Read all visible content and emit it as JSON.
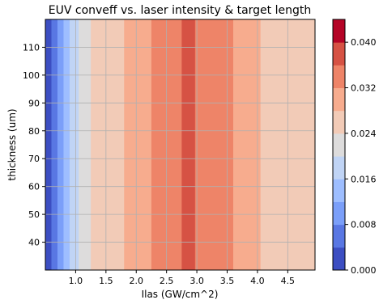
{
  "chart_data": {
    "type": "heatmap",
    "subtype": "filled-contour",
    "title": "EUV conveff vs. laser intensity & target length",
    "xlabel": "Ilas (GW/cm^2)",
    "ylabel": "thickness (um)",
    "xlim": [
      0.5,
      4.95
    ],
    "ylim": [
      30,
      120
    ],
    "x_ticks": [
      "1.0",
      "1.5",
      "2.0",
      "2.5",
      "3.0",
      "3.5",
      "4.0",
      "4.5"
    ],
    "x_tick_values": [
      1.0,
      1.5,
      2.0,
      2.5,
      3.0,
      3.5,
      4.0,
      4.5
    ],
    "y_ticks": [
      "40",
      "50",
      "60",
      "70",
      "80",
      "90",
      "100",
      "110"
    ],
    "y_tick_values": [
      40,
      50,
      60,
      70,
      80,
      90,
      100,
      110
    ],
    "grid": true,
    "colormap": "coolwarm",
    "colorbar": {
      "levels": [
        0.0,
        0.004,
        0.008,
        0.012,
        0.016,
        0.02,
        0.024,
        0.028,
        0.032,
        0.036,
        0.04,
        0.044
      ],
      "tick_labels": [
        "0.000",
        "0.008",
        "0.016",
        "0.024",
        "0.032",
        "0.040"
      ],
      "tick_values": [
        0.0,
        0.008,
        0.016,
        0.024,
        0.032,
        0.04
      ],
      "colors": [
        "#3c4ec2",
        "#5977e3",
        "#7b9ff9",
        "#9ebeff",
        "#c0d4f5",
        "#dddcdc",
        "#f2cbb7",
        "#f7ac8e",
        "#ee8468",
        "#d65244",
        "#b40426"
      ]
    },
    "bands": [
      {
        "x": [
          0.5,
          0.6
        ],
        "level": 0
      },
      {
        "x": [
          0.6,
          0.7
        ],
        "level": 1
      },
      {
        "x": [
          0.7,
          0.8
        ],
        "level": 2
      },
      {
        "x": [
          0.8,
          0.9
        ],
        "level": 3
      },
      {
        "x": [
          0.9,
          1.05
        ],
        "level": 4
      },
      {
        "x": [
          1.05,
          1.25
        ],
        "level": 5
      },
      {
        "x": [
          1.25,
          1.8
        ],
        "level": 6
      },
      {
        "x": [
          1.8,
          2.25
        ],
        "level": 7
      },
      {
        "x": [
          2.25,
          2.75
        ],
        "level": 8
      },
      {
        "x": [
          2.75,
          2.97
        ],
        "level": 9
      },
      {
        "x": [
          2.97,
          3.6
        ],
        "level": 8
      },
      {
        "x": [
          3.6,
          4.05
        ],
        "level": 7
      },
      {
        "x": [
          4.05,
          4.4
        ],
        "level": 6
      },
      {
        "x": [
          4.4,
          4.95
        ],
        "level": 6
      }
    ]
  }
}
